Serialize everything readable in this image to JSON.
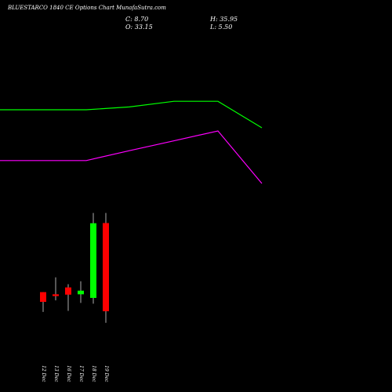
{
  "header": {
    "title": "BLUESTARCO 1840  CE Options  Chart MunafaSutra.com",
    "close_label": "C: 8.70",
    "open_label": "O: 33.15",
    "high_label": "H: 35.95",
    "low_label": "L: 5.50"
  },
  "chart_data": {
    "type": "candlestick",
    "title": "BLUESTARCO 1840  CE Options  Chart MunafaSutra.com",
    "categories": [
      "12 Dec",
      "13 Dec",
      "16 Dec",
      "17 Dec",
      "18 Dec",
      "19 Dec"
    ],
    "candles": [
      {
        "date": "12 Dec",
        "open": 14.0,
        "high": 14.0,
        "low": 8.5,
        "close": 11.3
      },
      {
        "date": "13 Dec",
        "open": 13.4,
        "high": 18.1,
        "low": 11.7,
        "close": 12.9
      },
      {
        "date": "16 Dec",
        "open": 15.3,
        "high": 16.2,
        "low": 8.8,
        "close": 13.3
      },
      {
        "date": "17 Dec",
        "open": 13.4,
        "high": 17.0,
        "low": 11.0,
        "close": 14.4
      },
      {
        "date": "18 Dec",
        "open": 12.4,
        "high": 35.95,
        "low": 10.8,
        "close": 33.1
      },
      {
        "date": "19 Dec",
        "open": 33.15,
        "high": 35.95,
        "low": 5.5,
        "close": 8.7
      }
    ],
    "bands": [
      {
        "color": "#00ff00",
        "values": [
          115,
          115,
          117,
          121,
          121,
          134
        ]
      },
      {
        "color": "#ff00ff",
        "values": [
          79,
          79,
          86,
          93,
          100,
          124
        ]
      }
    ],
    "colors": {
      "up": "#00ff00",
      "down": "#ff0000",
      "wick": "#d8d8d8",
      "background": "#000000"
    }
  }
}
